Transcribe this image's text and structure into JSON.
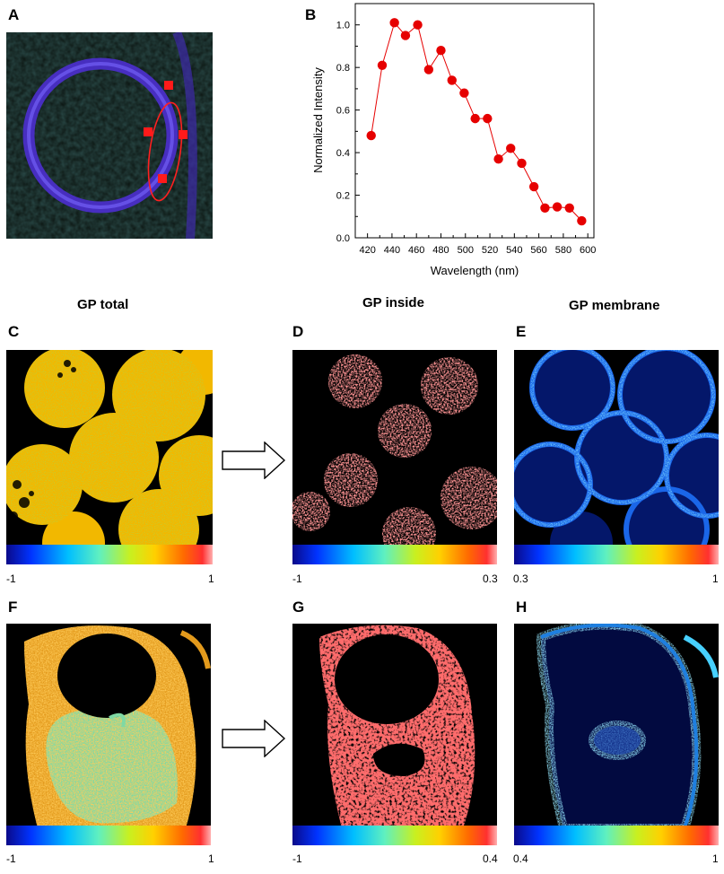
{
  "panels": {
    "a": {
      "label": "A"
    },
    "b": {
      "label": "B"
    },
    "c": {
      "label": "C"
    },
    "d": {
      "label": "D"
    },
    "e": {
      "label": "E"
    },
    "f": {
      "label": "F"
    },
    "g": {
      "label": "G"
    },
    "h": {
      "label": "H"
    }
  },
  "columns": {
    "total": "GP total",
    "inside": "GP inside",
    "membrane": "GP membrane"
  },
  "colorbars": {
    "c": {
      "min": "-1",
      "max": "1"
    },
    "d": {
      "min": "-1",
      "max": "0.3"
    },
    "e": {
      "min": "0.3",
      "max": "1"
    },
    "f": {
      "min": "-1",
      "max": "1"
    },
    "g": {
      "min": "-1",
      "max": "0.4"
    },
    "h": {
      "min": "0.4",
      "max": "1"
    }
  },
  "colors": {
    "series": "#e60000",
    "membrane_ring": "#5a3cf0",
    "roi": "#ff0000"
  },
  "chart_data": {
    "type": "line",
    "title": "",
    "xlabel": "Wavelength (nm)",
    "ylabel": "Normalized Intensity",
    "xlim": [
      410,
      605
    ],
    "ylim": [
      0.0,
      1.1
    ],
    "xticks": [
      "420",
      "440",
      "460",
      "480",
      "500",
      "520",
      "540",
      "560",
      "580",
      "600"
    ],
    "yticks": [
      "0.0",
      "0.2",
      "0.4",
      "0.6",
      "0.8",
      "1.0"
    ],
    "grid": false,
    "series": [
      {
        "marker": "circle",
        "x": [
          423,
          432,
          442,
          451,
          461,
          470,
          480,
          489,
          499,
          508,
          518,
          527,
          537,
          546,
          556,
          565,
          575,
          585,
          595
        ],
        "y": [
          0.48,
          0.81,
          1.01,
          0.95,
          1.0,
          0.79,
          0.88,
          0.74,
          0.68,
          0.56,
          0.56,
          0.37,
          0.42,
          0.35,
          0.24,
          0.14,
          0.145,
          0.14,
          0.08
        ]
      }
    ]
  }
}
